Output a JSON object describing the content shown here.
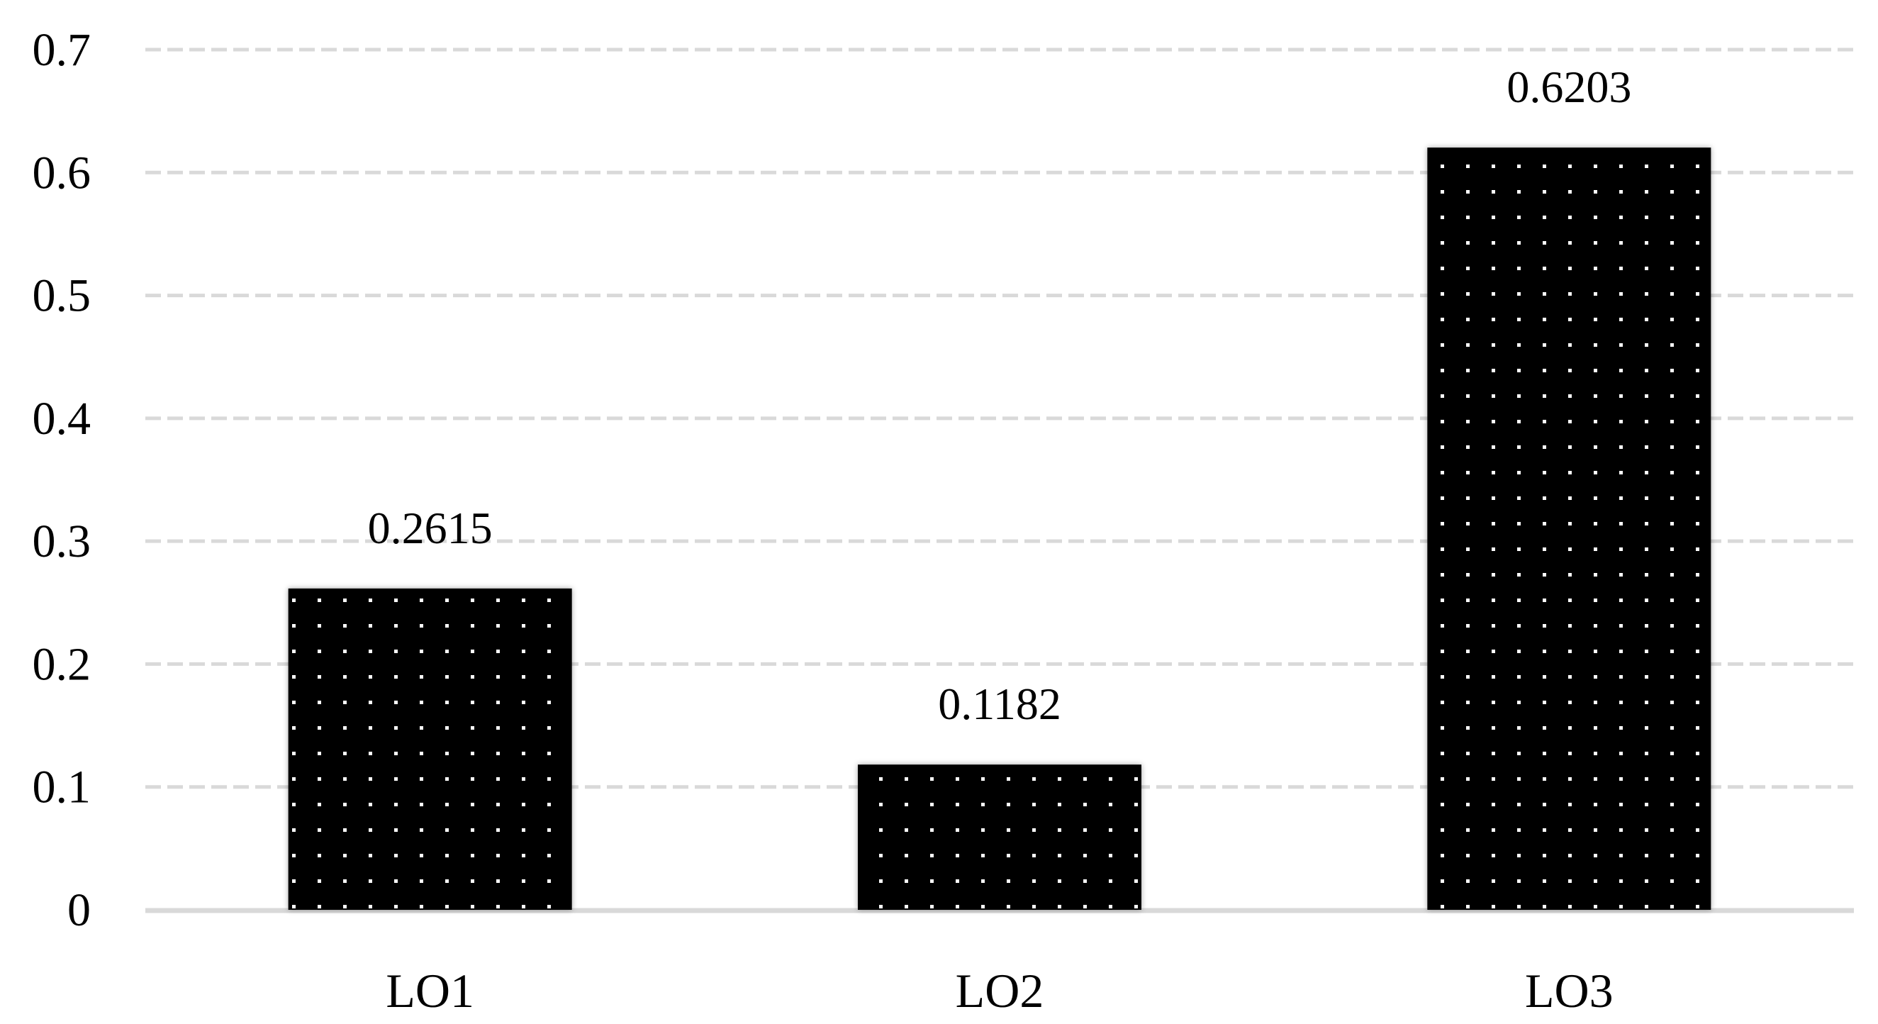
{
  "chart_data": {
    "type": "bar",
    "categories": [
      "LO1",
      "LO2",
      "LO3"
    ],
    "values": [
      0.2615,
      0.1182,
      0.6203
    ],
    "data_labels": [
      "0.2615",
      "0.1182",
      "0.6203"
    ],
    "y_ticks": [
      "0",
      "0.1",
      "0.2",
      "0.3",
      "0.4",
      "0.5",
      "0.6",
      "0.7"
    ],
    "ylim": [
      0,
      0.7
    ],
    "grid": true,
    "legend": "none",
    "title": "",
    "xlabel": "",
    "ylabel": "",
    "colors": {
      "bar_fill": "#000000",
      "bar_dots": "#ffffff",
      "gridline": "#d9d9d9",
      "axis_line": "#d9d9d9",
      "text": "#000000"
    }
  }
}
